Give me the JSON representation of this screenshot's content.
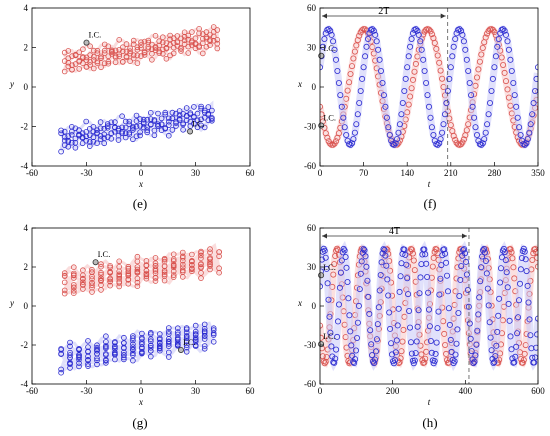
{
  "panel_captions": [
    "(e)",
    "(f)",
    "(g)",
    "(h)"
  ],
  "colors": {
    "red": "#d9534f",
    "blue": "#2a2ad0",
    "red_band": "#f7c6c6",
    "blue_band": "#c9c9f7",
    "dash": "#555555"
  },
  "chart_data": [
    {
      "type": "scatter",
      "panel": "(e)",
      "xlabel": "x",
      "ylabel": "y",
      "xlim": [
        -60,
        60
      ],
      "ylim": [
        -4,
        4
      ],
      "xticks": [
        "-60",
        "-30",
        "0",
        "30",
        "60"
      ],
      "yticks": [
        "4",
        "2",
        "0",
        "-2",
        "-4"
      ],
      "annotations": [
        {
          "text": "I.C.",
          "x": -30,
          "y": 2.4
        },
        {
          "text": "I.C.",
          "x": 27,
          "y": -2.1
        }
      ],
      "series": [
        {
          "color": "red",
          "x_range": [
            -42,
            43
          ],
          "y_left": 1.3,
          "y_right": 2.6,
          "y_spread": 0.9,
          "loops": 4
        },
        {
          "color": "blue",
          "x_range": [
            -44,
            40
          ],
          "y_left": -2.6,
          "y_right": -1.3,
          "y_spread": 0.9,
          "loops": 4
        }
      ]
    },
    {
      "type": "line",
      "panel": "(f)",
      "xlabel": "t",
      "ylabel": "x",
      "xlim": [
        0,
        350
      ],
      "ylim": [
        -60,
        60
      ],
      "xticks": [
        "0",
        "70",
        "140",
        "210",
        "280",
        "350"
      ],
      "yticks": [
        "60",
        "30",
        "0",
        "-30",
        "-60"
      ],
      "period_label": "2T",
      "period_end": 205,
      "annotations": [
        {
          "text": "I.C.",
          "x": 2,
          "y": 26
        },
        {
          "text": "I.C.",
          "x": 2,
          "y": -27
        }
      ],
      "series": [
        {
          "color": "red",
          "amplitude": 44,
          "period": 102,
          "phase_deg": 200
        },
        {
          "color": "blue",
          "amplitude": 44,
          "period": 70,
          "phase_deg": 20
        }
      ]
    },
    {
      "type": "scatter",
      "panel": "(g)",
      "xlabel": "x",
      "ylabel": "y",
      "xlim": [
        -60,
        60
      ],
      "ylim": [
        -4,
        4
      ],
      "xticks": [
        "-60",
        "-30",
        "0",
        "30",
        "60"
      ],
      "yticks": [
        "4",
        "2",
        "0",
        "-2",
        "-4"
      ],
      "annotations": [
        {
          "text": "I.C.",
          "x": -25,
          "y": 2.4
        },
        {
          "text": "I.C.",
          "x": 22,
          "y": -2.1
        }
      ],
      "series": [
        {
          "color": "red",
          "x_range": [
            -42,
            43
          ],
          "y_left": 1.2,
          "y_right": 2.4,
          "y_spread": 1.0,
          "loops": 5
        },
        {
          "color": "blue",
          "x_range": [
            -44,
            40
          ],
          "y_left": -2.7,
          "y_right": -1.4,
          "y_spread": 1.0,
          "loops": 5
        }
      ]
    },
    {
      "type": "line",
      "panel": "(h)",
      "xlabel": "t",
      "ylabel": "x",
      "xlim": [
        0,
        600
      ],
      "ylim": [
        -60,
        60
      ],
      "xticks": [
        "0",
        "200",
        "400",
        "600"
      ],
      "yticks": [
        "60",
        "30",
        "0",
        "-30",
        "-60"
      ],
      "period_label": "4T",
      "period_end": 410,
      "annotations": [
        {
          "text": "I.C.",
          "x": 3,
          "y": 26
        },
        {
          "text": "I.C.",
          "x": 3,
          "y": -27
        }
      ],
      "series": [
        {
          "color": "red",
          "amplitude": 44,
          "period": 68,
          "phase_deg": 200
        },
        {
          "color": "blue",
          "amplitude": 44,
          "period": 55,
          "phase_deg": 20
        }
      ]
    }
  ]
}
